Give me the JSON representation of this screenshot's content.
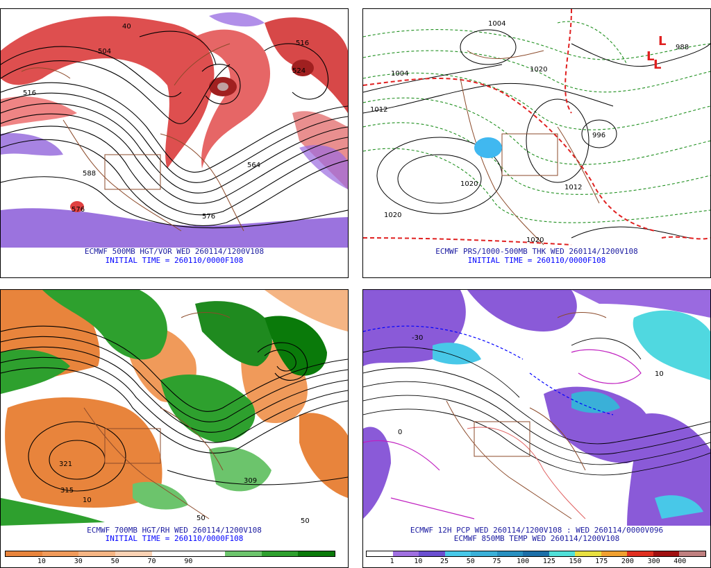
{
  "panels": {
    "top_left": {
      "caption": "ECMWF 500MB HGT/VOR WED 260114/1200V108",
      "init": "INITIAL TIME = 260110/0000F108",
      "contour_labels": [
        "504",
        "516",
        "516",
        "588",
        "576",
        "576",
        "564",
        "40",
        "524"
      ]
    },
    "top_right": {
      "caption": "ECMWF PRS/1000-500MB THK WED 260114/1200V108",
      "init": "INITIAL TIME = 260110/0000F108",
      "contour_labels": [
        "1004",
        "1020",
        "1020",
        "1012",
        "1012",
        "996",
        "1004",
        "1020",
        "1020",
        "988"
      ],
      "low_marker": "L"
    },
    "bottom_left": {
      "caption": "ECMWF 700MB HGT/RH WED 260114/1200V108",
      "init": "INITIAL TIME = 260110/0000F108",
      "contour_labels": [
        "321",
        "315",
        "10",
        "50",
        "50",
        "309"
      ],
      "legend": {
        "colors": [
          "#e8843c",
          "#f09a5a",
          "#f5b584",
          "#fad2b4",
          "#ffffff",
          "#ffffff",
          "#6cc46c",
          "#2ea02e",
          "#0a7a0a"
        ],
        "ticks": [
          "10",
          "30",
          "50",
          "70",
          "90"
        ]
      }
    },
    "bottom_right": {
      "caption": "ECMWF 12H PCP WED 260114/1200V108 : WED 260114/0000V096",
      "caption2": "ECMWF 850MB TEMP WED 260114/1200V108",
      "contour_labels": [
        "-30",
        "10",
        "0"
      ],
      "legend": {
        "colors": [
          "#ffffff",
          "#a070e0",
          "#6a4fd0",
          "#48c8e8",
          "#3ab0d8",
          "#2890c0",
          "#1c6fa8",
          "#50e0d8",
          "#e8e040",
          "#f0a030",
          "#e03020",
          "#a01010",
          "#c08080"
        ],
        "ticks": [
          "1",
          "10",
          "25",
          "50",
          "75",
          "100",
          "125",
          "150",
          "175",
          "200",
          "300",
          "400"
        ]
      }
    }
  }
}
